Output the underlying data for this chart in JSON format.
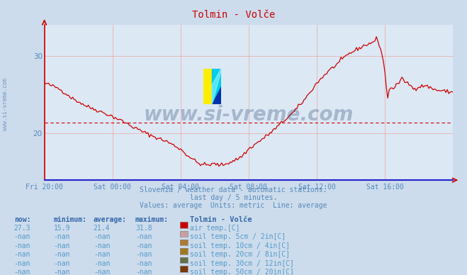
{
  "title": "Tolmin - Volče",
  "bg_color": "#ccdcec",
  "plot_bg_color": "#dce8f4",
  "line_color": "#cc0000",
  "avg_line_color": "#cc0000",
  "avg_value": 21.4,
  "yticks": [
    20,
    30
  ],
  "ylim": [
    14.0,
    34.0
  ],
  "tick_color": "#5588bb",
  "grid_color": "#e8b0b0",
  "subtitle1": "Slovenia / weather data - automatic stations.",
  "subtitle2": "last day / 5 minutes.",
  "subtitle3": "Values: average  Units: metric  Line: average",
  "watermark": "www.si-vreme.com",
  "watermark_color": "#1a3a6a",
  "legend_header": "Tolmin - Volče",
  "legend_rows": [
    {
      "now": "27.3",
      "min": "15.9",
      "avg": "21.4",
      "max": "31.8",
      "color": "#cc0000",
      "label": "air temp.[C]"
    },
    {
      "now": "-nan",
      "min": "-nan",
      "avg": "-nan",
      "max": "-nan",
      "color": "#c8a0a0",
      "label": "soil temp. 5cm / 2in[C]"
    },
    {
      "now": "-nan",
      "min": "-nan",
      "avg": "-nan",
      "max": "-nan",
      "color": "#b07838",
      "label": "soil temp. 10cm / 4in[C]"
    },
    {
      "now": "-nan",
      "min": "-nan",
      "avg": "-nan",
      "max": "-nan",
      "color": "#a07820",
      "label": "soil temp. 20cm / 8in[C]"
    },
    {
      "now": "-nan",
      "min": "-nan",
      "avg": "-nan",
      "max": "-nan",
      "color": "#607048",
      "label": "soil temp. 30cm / 12in[C]"
    },
    {
      "now": "-nan",
      "min": "-nan",
      "avg": "-nan",
      "max": "-nan",
      "color": "#783808",
      "label": "soil temp. 50cm / 20in[C]"
    }
  ],
  "x_tick_labels": [
    "Fri 20:00",
    "Sat 00:00",
    "Sat 04:00",
    "Sat 08:00",
    "Sat 12:00",
    "Sat 16:00"
  ],
  "x_tick_positions": [
    0,
    48,
    96,
    144,
    192,
    240
  ],
  "total_points": 289
}
